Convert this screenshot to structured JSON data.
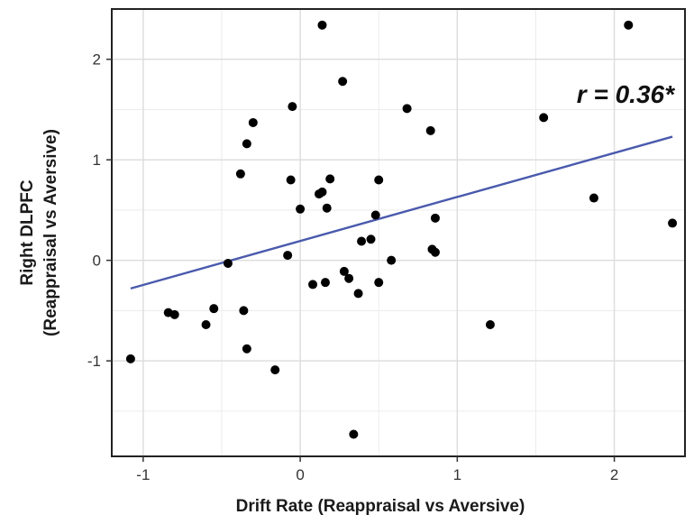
{
  "chart_data": {
    "type": "scatter",
    "xlabel": "Drift Rate (Reappraisal vs Aversive)",
    "ylabel_line1": "Right DLPFC",
    "ylabel_line2": "(Reappraisal vs Aversive)",
    "xlim": [
      -1.2,
      2.45
    ],
    "ylim": [
      -1.95,
      2.5
    ],
    "xticks": [
      {
        "value": -1,
        "label": "-1"
      },
      {
        "value": 0,
        "label": "0"
      },
      {
        "value": 1,
        "label": "1"
      },
      {
        "value": 2,
        "label": "2"
      }
    ],
    "yticks": [
      {
        "value": -1,
        "label": "-1"
      },
      {
        "value": 0,
        "label": "0"
      },
      {
        "value": 1,
        "label": "1"
      },
      {
        "value": 2,
        "label": "2"
      }
    ],
    "grid": true,
    "annotation": "r = 0.36*",
    "point_color": "#000000",
    "fit_color": "#4a5aad",
    "fit_line": {
      "x": [
        -1.08,
        2.37
      ],
      "y": [
        -0.28,
        1.23
      ]
    },
    "points": [
      {
        "x": -1.08,
        "y": -0.98
      },
      {
        "x": -0.84,
        "y": -0.52
      },
      {
        "x": -0.8,
        "y": -0.54
      },
      {
        "x": -0.6,
        "y": -0.64
      },
      {
        "x": -0.55,
        "y": -0.48
      },
      {
        "x": -0.46,
        "y": -0.03
      },
      {
        "x": -0.38,
        "y": 0.86
      },
      {
        "x": -0.36,
        "y": -0.5
      },
      {
        "x": -0.34,
        "y": -0.88
      },
      {
        "x": -0.34,
        "y": 1.16
      },
      {
        "x": -0.3,
        "y": 1.37
      },
      {
        "x": -0.16,
        "y": -1.09
      },
      {
        "x": -0.08,
        "y": 0.05
      },
      {
        "x": -0.06,
        "y": 0.8
      },
      {
        "x": -0.05,
        "y": 1.53
      },
      {
        "x": 0.0,
        "y": 0.51
      },
      {
        "x": 0.08,
        "y": -0.24
      },
      {
        "x": 0.12,
        "y": 0.66
      },
      {
        "x": 0.14,
        "y": 0.68
      },
      {
        "x": 0.14,
        "y": 2.34
      },
      {
        "x": 0.16,
        "y": -0.22
      },
      {
        "x": 0.17,
        "y": 0.52
      },
      {
        "x": 0.19,
        "y": 0.81
      },
      {
        "x": 0.27,
        "y": 1.78
      },
      {
        "x": 0.28,
        "y": -0.11
      },
      {
        "x": 0.31,
        "y": -0.18
      },
      {
        "x": 0.34,
        "y": -1.73
      },
      {
        "x": 0.37,
        "y": -0.33
      },
      {
        "x": 0.39,
        "y": 0.19
      },
      {
        "x": 0.45,
        "y": 0.21
      },
      {
        "x": 0.48,
        "y": 0.45
      },
      {
        "x": 0.5,
        "y": -0.22
      },
      {
        "x": 0.5,
        "y": 0.8
      },
      {
        "x": 0.58,
        "y": 0.0
      },
      {
        "x": 0.68,
        "y": 1.51
      },
      {
        "x": 0.83,
        "y": 1.29
      },
      {
        "x": 0.84,
        "y": 0.11
      },
      {
        "x": 0.86,
        "y": 0.42
      },
      {
        "x": 0.86,
        "y": 0.08
      },
      {
        "x": 1.21,
        "y": -0.64
      },
      {
        "x": 1.55,
        "y": 1.42
      },
      {
        "x": 1.87,
        "y": 0.62
      },
      {
        "x": 2.09,
        "y": 2.34
      },
      {
        "x": 2.37,
        "y": 0.37
      }
    ]
  }
}
